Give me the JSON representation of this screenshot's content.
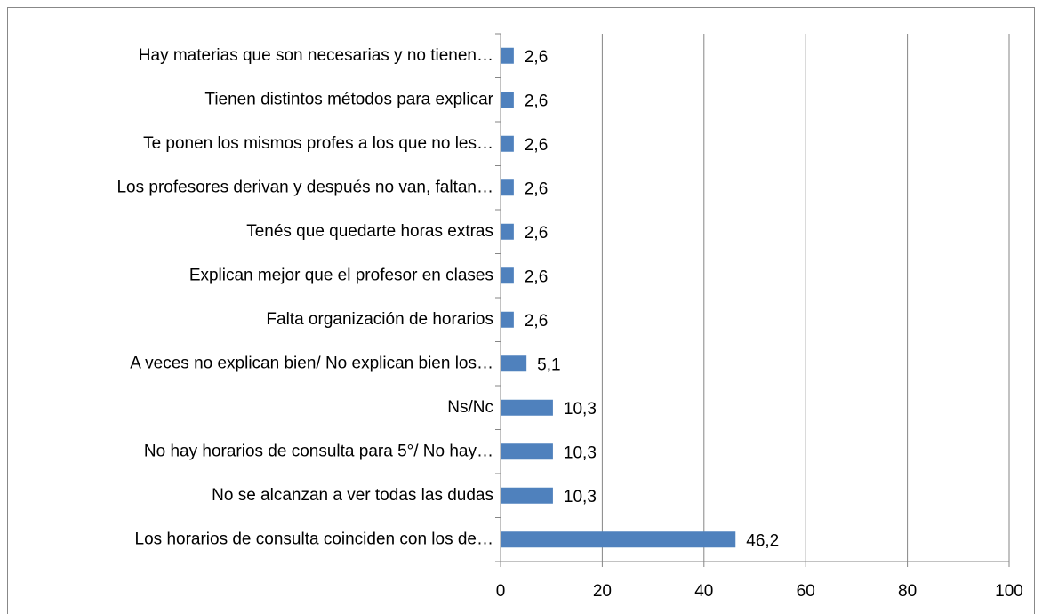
{
  "chart_data": {
    "type": "bar",
    "orientation": "horizontal",
    "categories": [
      "Hay materias que son necesarias y no tienen…",
      "Tienen distintos métodos para explicar",
      "Te ponen los mismos profes a los que no les…",
      "Los profesores derivan y después no van, faltan…",
      "Tenés que quedarte horas extras",
      "Explican mejor que el profesor en clases",
      "Falta organización de horarios",
      "A veces no explican bien/ No explican bien los…",
      "Ns/Nc",
      "No hay horarios de consulta para 5°/ No hay…",
      "No se alcanzan a ver todas las dudas",
      "Los horarios de consulta coinciden con los de…"
    ],
    "values": [
      2.6,
      2.6,
      2.6,
      2.6,
      2.6,
      2.6,
      2.6,
      5.1,
      10.3,
      10.3,
      10.3,
      46.2
    ],
    "value_labels": [
      "2,6",
      "2,6",
      "2,6",
      "2,6",
      "2,6",
      "2,6",
      "2,6",
      "5,1",
      "10,3",
      "10,3",
      "10,3",
      "46,2"
    ],
    "color": "#4f81bd",
    "xlim": [
      0,
      100
    ],
    "xticks": [
      0,
      20,
      40,
      60,
      80,
      100
    ],
    "grid": true
  }
}
